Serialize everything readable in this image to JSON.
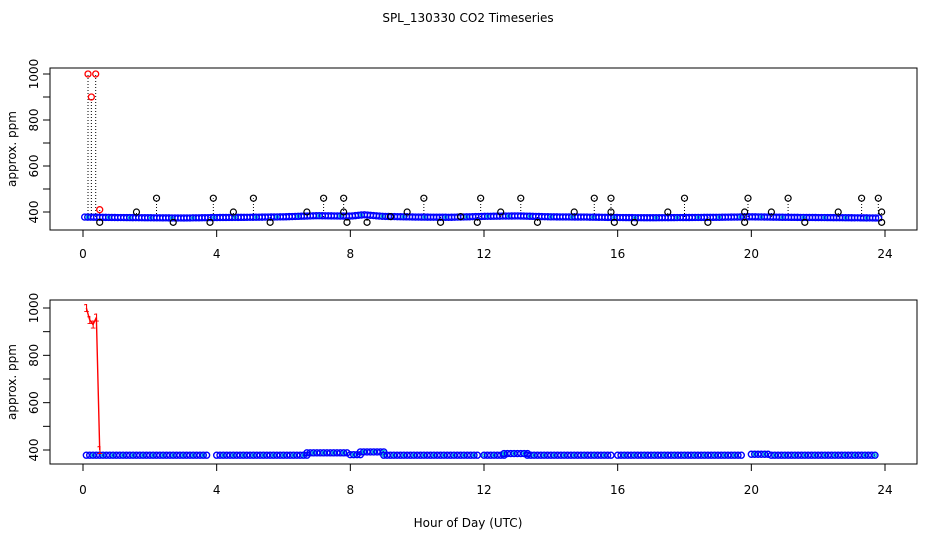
{
  "chart_data": {
    "title": "SPL_130330  CO2 Timeseries",
    "xlabel": "Hour of Day (UTC)",
    "colors": {
      "baseline": "#0000ff",
      "baseline_inner": "#00c8c8",
      "flagged": "#ff0000",
      "outlier": "#000000",
      "spike_line": "#ff0000"
    },
    "panels": [
      {
        "type": "scatter",
        "ylabel": "approx. ppm",
        "xlim": [
          0,
          24
        ],
        "ylim": [
          335,
          1010
        ],
        "xticks": [
          0,
          4,
          8,
          12,
          16,
          20,
          24
        ],
        "yticks": [
          400,
          600,
          800,
          1000
        ],
        "baseline": [
          [
            0.0,
            378
          ],
          [
            1.0,
            376
          ],
          [
            2.0,
            375
          ],
          [
            3.0,
            374
          ],
          [
            4.0,
            376
          ],
          [
            5.0,
            377
          ],
          [
            6.0,
            379
          ],
          [
            7.0,
            384
          ],
          [
            8.0,
            382
          ],
          [
            8.4,
            388
          ],
          [
            9.0,
            381
          ],
          [
            10.0,
            378
          ],
          [
            11.0,
            377
          ],
          [
            12.0,
            381
          ],
          [
            13.0,
            383
          ],
          [
            14.0,
            379
          ],
          [
            15.0,
            378
          ],
          [
            16.0,
            376
          ],
          [
            17.0,
            375
          ],
          [
            18.0,
            376
          ],
          [
            19.0,
            377
          ],
          [
            20.0,
            379
          ],
          [
            21.0,
            377
          ],
          [
            22.0,
            376
          ],
          [
            23.0,
            375
          ],
          [
            23.8,
            374
          ]
        ],
        "spikes": [
          [
            0.15,
            1000
          ],
          [
            0.25,
            900
          ],
          [
            0.38,
            1000
          ],
          [
            0.5,
            410
          ]
        ],
        "outliers": [
          [
            0.5,
            355
          ],
          [
            1.6,
            400
          ],
          [
            2.2,
            460
          ],
          [
            2.7,
            355
          ],
          [
            3.8,
            355
          ],
          [
            3.9,
            460
          ],
          [
            4.5,
            400
          ],
          [
            5.1,
            460
          ],
          [
            5.6,
            355
          ],
          [
            6.7,
            400
          ],
          [
            7.2,
            460
          ],
          [
            7.8,
            460
          ],
          [
            7.8,
            400
          ],
          [
            7.9,
            355
          ],
          [
            8.5,
            355
          ],
          [
            9.2,
            380
          ],
          [
            9.7,
            400
          ],
          [
            10.2,
            460
          ],
          [
            10.7,
            355
          ],
          [
            11.3,
            380
          ],
          [
            11.8,
            355
          ],
          [
            11.9,
            460
          ],
          [
            12.5,
            400
          ],
          [
            13.1,
            460
          ],
          [
            13.6,
            355
          ],
          [
            14.7,
            400
          ],
          [
            15.3,
            460
          ],
          [
            15.8,
            460
          ],
          [
            15.8,
            400
          ],
          [
            15.9,
            355
          ],
          [
            16.5,
            355
          ],
          [
            17.5,
            400
          ],
          [
            18.0,
            460
          ],
          [
            18.7,
            355
          ],
          [
            19.8,
            355
          ],
          [
            19.9,
            460
          ],
          [
            19.8,
            400
          ],
          [
            20.6,
            400
          ],
          [
            21.1,
            460
          ],
          [
            21.6,
            355
          ],
          [
            22.6,
            400
          ],
          [
            23.3,
            460
          ],
          [
            23.8,
            460
          ],
          [
            23.9,
            400
          ],
          [
            23.9,
            355
          ]
        ]
      },
      {
        "type": "line",
        "ylabel": "approx. ppm",
        "xlim": [
          0,
          24
        ],
        "ylim": [
          355,
          1010
        ],
        "xticks": [
          0,
          4,
          8,
          12,
          16,
          20,
          24
        ],
        "yticks": [
          400,
          600,
          800,
          1000
        ],
        "spike_labels": [
          "1",
          "1",
          "1",
          "1",
          "1"
        ],
        "spike_series": [
          [
            0.1,
            1000
          ],
          [
            0.2,
            950
          ],
          [
            0.3,
            930
          ],
          [
            0.4,
            960
          ],
          [
            0.5,
            400
          ]
        ],
        "segments": [
          {
            "start": 0.1,
            "end": 3.8,
            "value": 378
          },
          {
            "start": 4.0,
            "end": 6.7,
            "value": 378
          },
          {
            "start": 6.7,
            "end": 7.9,
            "value": 388
          },
          {
            "start": 8.0,
            "end": 8.3,
            "value": 380
          },
          {
            "start": 8.3,
            "end": 9.0,
            "value": 392
          },
          {
            "start": 9.0,
            "end": 11.8,
            "value": 378
          },
          {
            "start": 12.0,
            "end": 12.6,
            "value": 378
          },
          {
            "start": 12.6,
            "end": 13.3,
            "value": 385
          },
          {
            "start": 13.3,
            "end": 15.8,
            "value": 378
          },
          {
            "start": 16.0,
            "end": 18.0,
            "value": 378
          },
          {
            "start": 18.0,
            "end": 19.8,
            "value": 378
          },
          {
            "start": 20.0,
            "end": 20.6,
            "value": 382
          },
          {
            "start": 20.6,
            "end": 23.8,
            "value": 378
          }
        ]
      }
    ]
  }
}
